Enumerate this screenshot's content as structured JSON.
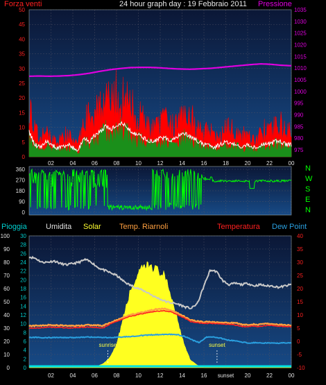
{
  "title": "24 hour graph day : 19 Febbraio 2011",
  "colors": {
    "wind": "#ff0000",
    "gust_green": "#1a8f1a",
    "pressure": "#e000e0",
    "grid_bg_top": "#0a1a40",
    "grid_bg_bottom": "#13407a",
    "dir": "#00ff00",
    "temp": "#ff2020",
    "feels": "#ffa040",
    "humidity": "#c8c8c8",
    "dewpoint": "#2aa0e0",
    "solar": "#ffff20",
    "rain": "#00e0e0",
    "left_axis": "#00c8c8",
    "left_axis2": "#ff2020"
  },
  "chart_data": [
    {
      "type": "line",
      "name": "wind-pressure",
      "left_label": "Forza venti",
      "right_label": "Pressione",
      "x_ticks": [
        "02",
        "04",
        "06",
        "08",
        "10",
        "12",
        "14",
        "16",
        "18",
        "20",
        "22",
        "00"
      ],
      "y_left_ticks": [
        "50",
        "45",
        "40",
        "35",
        "30",
        "25",
        "20",
        "15",
        "10",
        "5",
        "0"
      ],
      "y_left_range": [
        0,
        50
      ],
      "y_right_ticks": [
        "1035",
        "1030",
        "1025",
        "1020",
        "1015",
        "1010",
        "1005",
        "1000",
        "995",
        "990",
        "985",
        "980",
        "975"
      ],
      "y_right_range": [
        972,
        1035
      ],
      "series": [
        {
          "key": "pressure",
          "values": [
            1006.5,
            1006.6,
            1006.5,
            1006.6,
            1006.8,
            1007.2,
            1007.8,
            1008.6,
            1009.3,
            1009.8,
            1010.2,
            1010.3,
            1010.3,
            1010.1,
            1009.8,
            1009.6,
            1009.5,
            1009.7,
            1009.9,
            1010.3,
            1010.7,
            1011.1,
            1011.5,
            1011.8,
            1011.6,
            1011.2,
            1011.0
          ]
        },
        {
          "key": "wind",
          "values": [
            18,
            9,
            6,
            8,
            7,
            5,
            6,
            8,
            5,
            4,
            14,
            13,
            16,
            18,
            19,
            17,
            21,
            20,
            18,
            16,
            14,
            12,
            10,
            9,
            11,
            12,
            10,
            11,
            18,
            15,
            13,
            9,
            8,
            9,
            6,
            7,
            9,
            10,
            8,
            7,
            8,
            6,
            7,
            9,
            8,
            10,
            11,
            9,
            8
          ]
        },
        {
          "key": "gust",
          "values": [
            8,
            4,
            3,
            5,
            4,
            3,
            3,
            4,
            3,
            2,
            6,
            5,
            7,
            8,
            10,
            9,
            10,
            11,
            9,
            8,
            7,
            6,
            5,
            5,
            6,
            6,
            5,
            6,
            8,
            7,
            6,
            5,
            4,
            4,
            3,
            4,
            5,
            4,
            4,
            3,
            4,
            3,
            3,
            4,
            4,
            5,
            5,
            4,
            4
          ]
        }
      ]
    },
    {
      "type": "scatter",
      "name": "wind-direction",
      "y_ticks": [
        "360",
        "270",
        "180",
        "90",
        "0"
      ],
      "y_range": [
        0,
        360
      ],
      "compass": [
        "N",
        "W",
        "S",
        "E",
        "N"
      ]
    },
    {
      "type": "line",
      "name": "meteo",
      "legend": {
        "rain": "Pioggia",
        "humidity": "Umidita",
        "solar": "Solar",
        "feels": "Temp. Riarnoli",
        "temp": "Temperatura",
        "dewpoint": "Dew Point"
      },
      "annotations": {
        "sunrise": "sunrise",
        "sunset": "sunset"
      },
      "x_ticks": [
        "02",
        "04",
        "06",
        "08",
        "10",
        "12",
        "14",
        "16",
        "sunset",
        "20",
        "22",
        "00"
      ],
      "y_left1_ticks": [
        "100",
        "90",
        "80",
        "70",
        "60",
        "50",
        "40",
        "30",
        "20",
        "10",
        "0"
      ],
      "y_left2_ticks": [
        "30",
        "28",
        "26",
        "24",
        "22",
        "20",
        "18",
        "16",
        "14",
        "12",
        "10",
        "8",
        "6",
        "4",
        "2",
        "0"
      ],
      "y_right_ticks": [
        "40",
        "35",
        "30",
        "25",
        "20",
        "15",
        "10",
        "5",
        "0",
        "-5",
        "-10"
      ],
      "y_right_range": [
        -10,
        40
      ],
      "series": [
        {
          "key": "humidity",
          "values": [
            84,
            83,
            80,
            80,
            81,
            79,
            78,
            79,
            80,
            82,
            80,
            76,
            74,
            72,
            70,
            66,
            63,
            61,
            59,
            57,
            54,
            52,
            50,
            49,
            48,
            46,
            45,
            49,
            62,
            74,
            73,
            66,
            63,
            64,
            63,
            64,
            62,
            63,
            62,
            62,
            61,
            62,
            63
          ]
        },
        {
          "key": "temp",
          "values": [
            5,
            5,
            5.2,
            5.4,
            5.3,
            5.2,
            5.0,
            5.2,
            5.3,
            5.4,
            5.3,
            5.0,
            6.5,
            7.5,
            8.5,
            9.5,
            10.0,
            10.5,
            11.0,
            11.4,
            11.6,
            11.2,
            10.2,
            9.0,
            7.5,
            7.0,
            6.8,
            6.8,
            6.7,
            6.6,
            6.4,
            6.0,
            5.5,
            5.8,
            5.6,
            5.9,
            6.0,
            5.8,
            5.6,
            5.5
          ]
        },
        {
          "key": "feels",
          "values": [
            5.8,
            5.9,
            6.0,
            6.2,
            6.1,
            6.0,
            5.8,
            5.9,
            6.0,
            6.2,
            6.1,
            5.9,
            7.0,
            8.0,
            9.0,
            10.0,
            10.6,
            11.0,
            11.6,
            12.2,
            12.4,
            11.8,
            10.8,
            9.5,
            8.0,
            7.6,
            7.3,
            7.4,
            7.2,
            7.1,
            7.0,
            6.8,
            6.2,
            6.5,
            6.3,
            6.6,
            6.7,
            6.4,
            6.2,
            6.0
          ]
        },
        {
          "key": "dewpoint",
          "values": [
            1.5,
            1.5,
            1.3,
            1.4,
            1.5,
            1.4,
            1.4,
            1.5,
            1.6,
            1.6,
            1.5,
            1.4,
            1.5,
            1.6,
            1.8,
            2.0,
            2.2,
            2.4,
            2.5,
            2.6,
            2.6,
            2.5,
            1.8,
            0.5,
            -0.5,
            1.5,
            1.7,
            1.2,
            0.5,
            0.2,
            -0.3,
            -0.6,
            -0.5,
            -0.7,
            -0.6,
            -0.7,
            -0.6,
            -0.7
          ]
        },
        {
          "key": "solar",
          "values": [
            0,
            0,
            0,
            0,
            0,
            0,
            0,
            0,
            0,
            0,
            1,
            3,
            8,
            18,
            40,
            60,
            72,
            80,
            82,
            78,
            74,
            60,
            40,
            20,
            6,
            2,
            0,
            0,
            0,
            0,
            0,
            0,
            0,
            0,
            0,
            0,
            0,
            0,
            0,
            0
          ]
        }
      ]
    }
  ]
}
